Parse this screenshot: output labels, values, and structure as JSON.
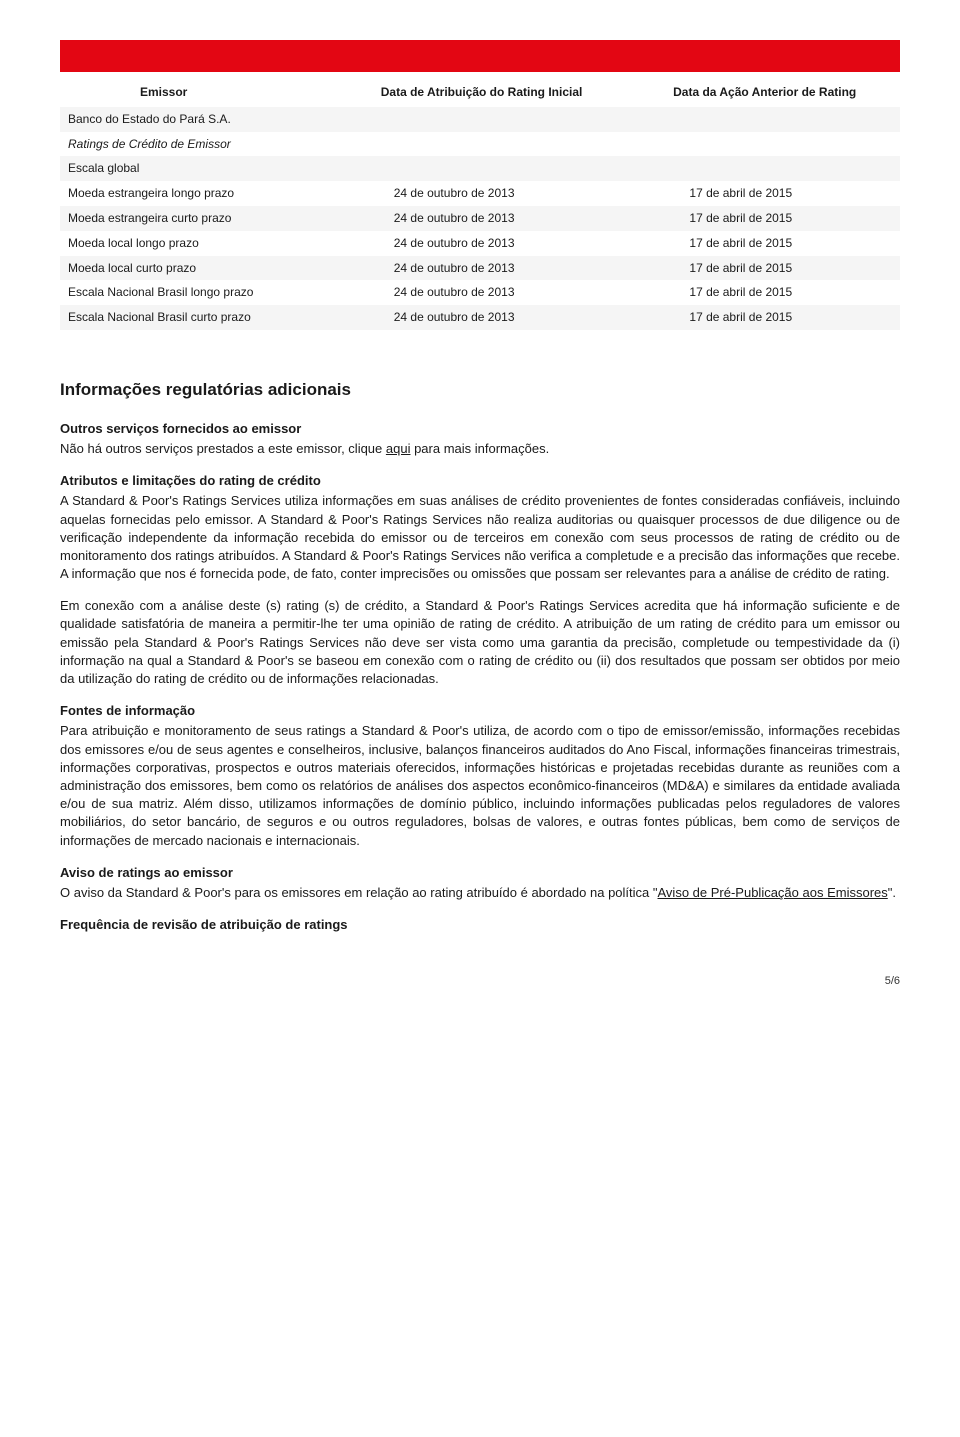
{
  "table": {
    "headers": [
      "Emissor",
      "Data de Atribuição do Rating Inicial",
      "Data da Ação Anterior de Rating"
    ],
    "bank_row": "Banco do Estado do Pará S.A.",
    "subheader1": "Ratings de Crédito de Emissor",
    "subheader2": "Escala global",
    "rows": [
      {
        "label": "Moeda estrangeira longo prazo",
        "c2": "24 de outubro de 2013",
        "c3": "17 de abril de 2015"
      },
      {
        "label": "Moeda estrangeira curto prazo",
        "c2": "24 de outubro de 2013",
        "c3": "17 de abril de 2015"
      },
      {
        "label": "Moeda local longo prazo",
        "c2": "24 de outubro de 2013",
        "c3": "17 de abril de 2015"
      },
      {
        "label": "Moeda local curto prazo",
        "c2": "24 de outubro de 2013",
        "c3": "17 de abril de 2015"
      },
      {
        "label": "Escala Nacional Brasil longo prazo",
        "c2": "24 de outubro de 2013",
        "c3": "17 de abril de 2015"
      },
      {
        "label": "Escala Nacional Brasil curto prazo",
        "c2": "24 de outubro de 2013",
        "c3": "17 de abril de 2015"
      }
    ]
  },
  "section_title": "Informações regulatórias adicionais",
  "p1_head": "Outros serviços fornecidos ao emissor",
  "p1_a": "Não há outros serviços prestados a este emissor, clique ",
  "p1_link": "aqui",
  "p1_b": " para mais informações.",
  "p2_head": "Atributos e limitações do rating de crédito",
  "p2": "A Standard & Poor's Ratings Services utiliza informações em suas análises de crédito provenientes de fontes consideradas confiáveis, incluindo aquelas fornecidas pelo emissor. A Standard & Poor's Ratings Services não realiza auditorias ou quaisquer processos de due diligence ou de verificação independente da informação recebida do emissor ou de terceiros em conexão com seus processos de rating de crédito ou de monitoramento dos ratings atribuídos. A Standard & Poor's Ratings Services não verifica a completude e a precisão das informações que recebe. A informação que nos é fornecida pode, de fato, conter imprecisões ou omissões que possam ser relevantes para a análise de crédito de rating.",
  "p3": "Em conexão com a análise deste (s) rating (s) de crédito, a Standard & Poor's Ratings Services acredita que há informação suficiente e de qualidade satisfatória de maneira a permitir-lhe ter uma opinião de rating de crédito. A atribuição de um rating de crédito para um emissor ou emissão pela Standard & Poor's Ratings Services não deve ser vista como uma garantia da precisão, completude ou tempestividade da (i) informação na qual a Standard & Poor's se baseou em conexão com o rating de crédito ou (ii) dos resultados que possam ser obtidos por meio da utilização do rating de crédito ou de informações relacionadas.",
  "p4_head": "Fontes de informação",
  "p4": "Para atribuição e monitoramento de seus ratings a Standard & Poor's utiliza, de acordo com o tipo de emissor/emissão, informações recebidas dos emissores e/ou de seus agentes e conselheiros, inclusive, balanços financeiros auditados do Ano Fiscal, informações financeiras trimestrais, informações corporativas, prospectos e outros materiais oferecidos, informações históricas e projetadas recebidas durante as reuniões com a administração dos emissores, bem como os relatórios de análises dos aspectos econômico-financeiros (MD&A) e similares da entidade avaliada e/ou de sua matriz. Além disso, utilizamos informações de domínio público, incluindo informações publicadas pelos reguladores de valores mobiliários, do setor bancário, de seguros e ou outros reguladores, bolsas de valores, e outras fontes públicas, bem como de serviços de informações de mercado nacionais e internacionais.",
  "p5_head": "Aviso de ratings ao emissor",
  "p5_a": "O aviso da Standard & Poor's para os emissores em relação ao rating atribuído é abordado na política \"",
  "p5_link": "Aviso de Pré-Publicação aos Emissores",
  "p5_b": "\".",
  "p6_head": "Frequência de revisão de atribuição de ratings",
  "page_num": "5/6"
}
